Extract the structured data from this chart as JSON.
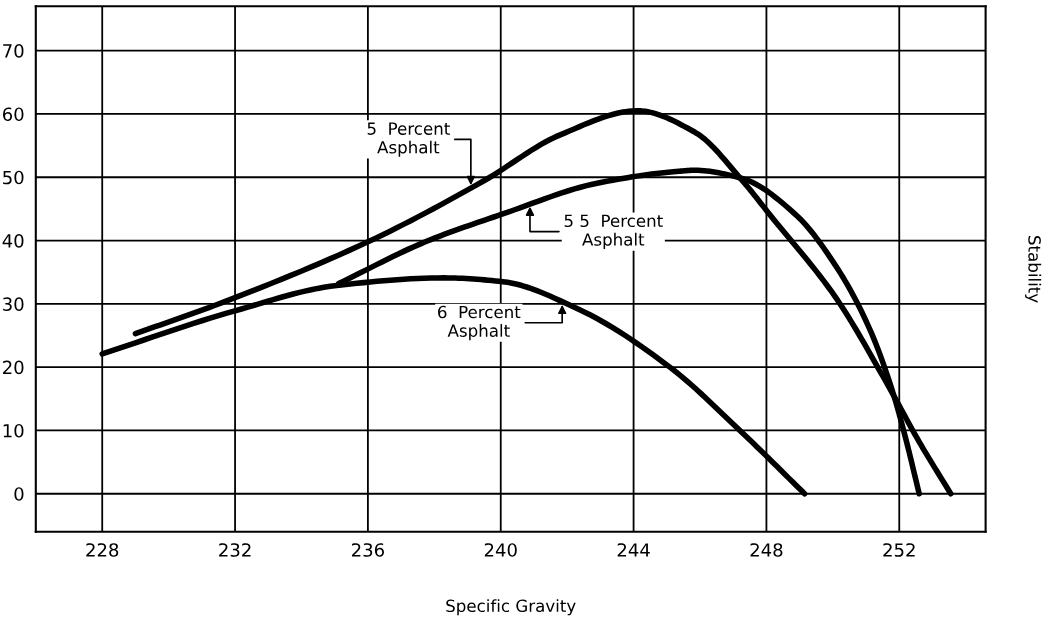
{
  "chart_data": {
    "type": "line",
    "xlabel": "Specific Gravity",
    "ylabel": "Stability",
    "xlim": [
      226,
      254.6
    ],
    "ylim": [
      -6,
      77
    ],
    "xticks": [
      228,
      232,
      236,
      240,
      244,
      248,
      252
    ],
    "yticks": [
      0,
      10,
      20,
      30,
      40,
      50,
      60,
      70
    ],
    "grid": true,
    "line_style": "solid",
    "series": [
      {
        "color": "#000000",
        "x": [
          229,
          231.36,
          236,
          239.48,
          241.79,
          244.12,
          245.85,
          247.27,
          248.1,
          250.1,
          251.6,
          252.6,
          253.55
        ],
        "values": [
          25.3,
          29.7,
          39.8,
          49.4,
          56.7,
          60.5,
          57.1,
          49.5,
          44.1,
          30.9,
          17.7,
          8.2,
          0
        ]
      },
      {
        "color": "#000000",
        "x": [
          235.12,
          237.73,
          240.06,
          242.94,
          245.27,
          245.85,
          247.27,
          248.88,
          250.1,
          251.12,
          251.82,
          252.2,
          252.6
        ],
        "values": [
          33.2,
          39.8,
          44.2,
          49.1,
          50.9,
          51.1,
          49.8,
          44.1,
          35.9,
          25.9,
          15.8,
          8.6,
          0
        ]
      },
      {
        "color": "#000000",
        "x": [
          228,
          232,
          235.06,
          238.3,
          240.06,
          242.36,
          245.09,
          247.24,
          249.15
        ],
        "values": [
          22.1,
          28.9,
          32.9,
          34.1,
          33.5,
          29.1,
          20.0,
          9.8,
          0
        ]
      }
    ],
    "annotations": [
      {
        "text": "5  Percent\nAsphalt",
        "x": 239.1,
        "y": 48.3
      },
      {
        "text": "5 5  Percent\nAsphalt",
        "x": 240.88,
        "y": 45.8
      },
      {
        "text": "6  Percent\nAsphalt",
        "x": 241.85,
        "y": 30.3
      }
    ]
  }
}
